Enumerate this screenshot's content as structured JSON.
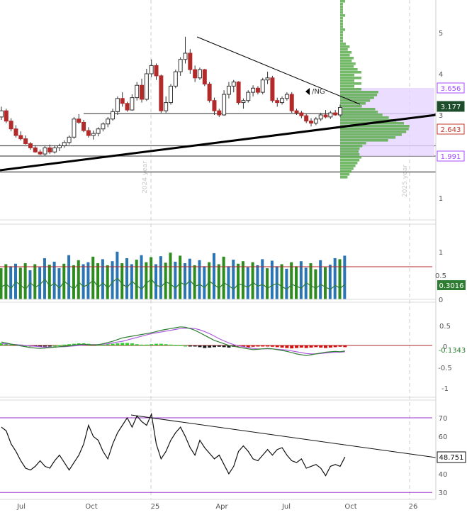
{
  "chart_data": [
    {
      "panel": "price",
      "type": "candlestick",
      "symbol_label": "/NG",
      "y_ticks": [
        "5",
        "4",
        "3",
        "2",
        "1"
      ],
      "ylim": [
        0.0,
        5.8
      ],
      "scale": "log",
      "year_labels": [
        "2024 year",
        "2025 year"
      ],
      "price_tags": [
        {
          "value": "3.656",
          "color": "#a64dff"
        },
        {
          "value": "3.177",
          "color": "#1d4d2b"
        },
        {
          "value": "2.643",
          "color": "#c0392b"
        },
        {
          "value": "1.991",
          "color": "#a64dff"
        }
      ],
      "horizontal_levels": [
        3.03,
        2.25,
        2.0,
        1.62
      ],
      "volume_profile": true,
      "candles": [
        {
          "o": 2.95,
          "h": 3.2,
          "l": 2.88,
          "c": 3.1
        },
        {
          "o": 3.1,
          "h": 3.15,
          "l": 2.8,
          "c": 2.85
        },
        {
          "o": 2.85,
          "h": 2.92,
          "l": 2.6,
          "c": 2.66
        },
        {
          "o": 2.66,
          "h": 2.75,
          "l": 2.45,
          "c": 2.5
        },
        {
          "o": 2.5,
          "h": 2.6,
          "l": 2.38,
          "c": 2.42
        },
        {
          "o": 2.42,
          "h": 2.5,
          "l": 2.28,
          "c": 2.3
        },
        {
          "o": 2.3,
          "h": 2.34,
          "l": 2.15,
          "c": 2.2
        },
        {
          "o": 2.2,
          "h": 2.26,
          "l": 2.08,
          "c": 2.1
        },
        {
          "o": 2.1,
          "h": 2.16,
          "l": 2.02,
          "c": 2.05
        },
        {
          "o": 2.05,
          "h": 2.25,
          "l": 2.0,
          "c": 2.2
        },
        {
          "o": 2.2,
          "h": 2.28,
          "l": 2.05,
          "c": 2.1
        },
        {
          "o": 2.1,
          "h": 2.25,
          "l": 2.06,
          "c": 2.2
        },
        {
          "o": 2.2,
          "h": 2.3,
          "l": 2.12,
          "c": 2.25
        },
        {
          "o": 2.25,
          "h": 2.38,
          "l": 2.2,
          "c": 2.33
        },
        {
          "o": 2.33,
          "h": 2.5,
          "l": 2.28,
          "c": 2.46
        },
        {
          "o": 2.46,
          "h": 2.95,
          "l": 2.42,
          "c": 2.9
        },
        {
          "o": 2.9,
          "h": 3.02,
          "l": 2.78,
          "c": 2.82
        },
        {
          "o": 2.82,
          "h": 2.88,
          "l": 2.58,
          "c": 2.62
        },
        {
          "o": 2.62,
          "h": 2.7,
          "l": 2.45,
          "c": 2.5
        },
        {
          "o": 2.5,
          "h": 2.62,
          "l": 2.4,
          "c": 2.55
        },
        {
          "o": 2.55,
          "h": 2.7,
          "l": 2.48,
          "c": 2.66
        },
        {
          "o": 2.66,
          "h": 2.82,
          "l": 2.6,
          "c": 2.78
        },
        {
          "o": 2.78,
          "h": 2.95,
          "l": 2.7,
          "c": 2.9
        },
        {
          "o": 2.9,
          "h": 3.15,
          "l": 2.86,
          "c": 3.08
        },
        {
          "o": 3.08,
          "h": 3.45,
          "l": 3.0,
          "c": 3.4
        },
        {
          "o": 3.4,
          "h": 3.55,
          "l": 3.2,
          "c": 3.28
        },
        {
          "o": 3.28,
          "h": 3.32,
          "l": 3.08,
          "c": 3.12
        },
        {
          "o": 3.12,
          "h": 3.5,
          "l": 3.1,
          "c": 3.42
        },
        {
          "o": 3.42,
          "h": 3.8,
          "l": 3.35,
          "c": 3.72
        },
        {
          "o": 3.72,
          "h": 3.88,
          "l": 3.3,
          "c": 3.38
        },
        {
          "o": 3.38,
          "h": 4.12,
          "l": 3.34,
          "c": 4.0
        },
        {
          "o": 4.0,
          "h": 4.35,
          "l": 3.92,
          "c": 4.2
        },
        {
          "o": 4.2,
          "h": 4.25,
          "l": 3.85,
          "c": 3.95
        },
        {
          "o": 3.95,
          "h": 3.98,
          "l": 3.05,
          "c": 3.1
        },
        {
          "o": 3.1,
          "h": 3.45,
          "l": 3.05,
          "c": 3.3
        },
        {
          "o": 3.3,
          "h": 3.75,
          "l": 3.25,
          "c": 3.7
        },
        {
          "o": 3.7,
          "h": 4.1,
          "l": 3.65,
          "c": 4.05
        },
        {
          "o": 4.05,
          "h": 4.4,
          "l": 3.95,
          "c": 4.35
        },
        {
          "o": 4.35,
          "h": 4.9,
          "l": 4.25,
          "c": 4.5
        },
        {
          "o": 4.5,
          "h": 4.6,
          "l": 4.0,
          "c": 4.1
        },
        {
          "o": 4.1,
          "h": 4.2,
          "l": 3.8,
          "c": 3.9
        },
        {
          "o": 3.9,
          "h": 4.15,
          "l": 3.85,
          "c": 4.1
        },
        {
          "o": 4.1,
          "h": 4.12,
          "l": 3.7,
          "c": 3.75
        },
        {
          "o": 3.75,
          "h": 3.8,
          "l": 3.3,
          "c": 3.35
        },
        {
          "o": 3.35,
          "h": 3.42,
          "l": 3.0,
          "c": 3.1
        },
        {
          "o": 3.1,
          "h": 3.15,
          "l": 2.95,
          "c": 3.0
        },
        {
          "o": 3.0,
          "h": 3.6,
          "l": 2.98,
          "c": 3.5
        },
        {
          "o": 3.5,
          "h": 3.8,
          "l": 3.4,
          "c": 3.7
        },
        {
          "o": 3.7,
          "h": 3.85,
          "l": 3.55,
          "c": 3.8
        },
        {
          "o": 3.8,
          "h": 3.82,
          "l": 3.25,
          "c": 3.3
        },
        {
          "o": 3.3,
          "h": 3.4,
          "l": 3.15,
          "c": 3.35
        },
        {
          "o": 3.35,
          "h": 3.6,
          "l": 3.3,
          "c": 3.55
        },
        {
          "o": 3.55,
          "h": 3.72,
          "l": 3.45,
          "c": 3.65
        },
        {
          "o": 3.65,
          "h": 3.7,
          "l": 3.5,
          "c": 3.55
        },
        {
          "o": 3.55,
          "h": 3.9,
          "l": 3.5,
          "c": 3.85
        },
        {
          "o": 3.85,
          "h": 4.05,
          "l": 3.75,
          "c": 3.9
        },
        {
          "o": 3.9,
          "h": 3.95,
          "l": 3.3,
          "c": 3.35
        },
        {
          "o": 3.35,
          "h": 3.42,
          "l": 3.2,
          "c": 3.3
        },
        {
          "o": 3.3,
          "h": 3.45,
          "l": 3.25,
          "c": 3.4
        },
        {
          "o": 3.4,
          "h": 3.55,
          "l": 3.35,
          "c": 3.5
        },
        {
          "o": 3.5,
          "h": 3.55,
          "l": 3.05,
          "c": 3.1
        },
        {
          "o": 3.1,
          "h": 3.15,
          "l": 3.0,
          "c": 3.05
        },
        {
          "o": 3.05,
          "h": 3.1,
          "l": 2.92,
          "c": 2.98
        },
        {
          "o": 2.98,
          "h": 3.02,
          "l": 2.8,
          "c": 2.85
        },
        {
          "o": 2.85,
          "h": 2.92,
          "l": 2.72,
          "c": 2.8
        },
        {
          "o": 2.8,
          "h": 2.95,
          "l": 2.75,
          "c": 2.9
        },
        {
          "o": 2.9,
          "h": 3.05,
          "l": 2.85,
          "c": 3.0
        },
        {
          "o": 3.0,
          "h": 3.12,
          "l": 2.92,
          "c": 2.95
        },
        {
          "o": 2.95,
          "h": 3.1,
          "l": 2.9,
          "c": 3.05
        },
        {
          "o": 3.05,
          "h": 3.12,
          "l": 2.98,
          "c": 3.0
        },
        {
          "o": 3.0,
          "h": 3.25,
          "l": 2.95,
          "c": 3.18
        }
      ]
    },
    {
      "panel": "volume",
      "type": "bar",
      "y_ticks": [
        "1",
        "0.5",
        "0"
      ],
      "ylim": [
        0,
        1.3
      ],
      "last_value_label": "0.3016",
      "reference_level": 0.65,
      "volume_values": [
        0.62,
        0.7,
        0.66,
        0.71,
        0.63,
        0.72,
        0.58,
        0.7,
        0.64,
        0.82,
        0.69,
        0.75,
        0.62,
        0.71,
        0.88,
        0.68,
        0.78,
        0.7,
        0.74,
        0.85,
        0.72,
        0.8,
        0.68,
        0.76,
        0.95,
        0.72,
        0.82,
        0.7,
        0.79,
        0.88,
        0.74,
        0.84,
        0.7,
        0.86,
        0.73,
        0.93,
        0.75,
        0.87,
        0.72,
        0.81,
        0.68,
        0.78,
        0.66,
        0.74,
        0.92,
        0.7,
        0.85,
        0.66,
        0.79,
        0.71,
        0.76,
        0.64,
        0.74,
        0.68,
        0.8,
        0.62,
        0.77,
        0.66,
        0.7,
        0.61,
        0.74,
        0.66,
        0.76,
        0.63,
        0.72,
        0.6,
        0.78,
        0.64,
        0.69,
        0.82,
        0.8,
        0.87
      ],
      "bar_colors": [
        "#2b75b5",
        "#2e8b1e"
      ],
      "moving_average": [
        0.25,
        0.3,
        0.22,
        0.35,
        0.28,
        0.2,
        0.33,
        0.24,
        0.3,
        0.4,
        0.26,
        0.32,
        0.22,
        0.36,
        0.28,
        0.2,
        0.34,
        0.25,
        0.3,
        0.38,
        0.24,
        0.33,
        0.22,
        0.35,
        0.42,
        0.3,
        0.24,
        0.36,
        0.27,
        0.2,
        0.33,
        0.4,
        0.28,
        0.25,
        0.35,
        0.3,
        0.22,
        0.34,
        0.28,
        0.38,
        0.26,
        0.3,
        0.23,
        0.36,
        0.29,
        0.22,
        0.33,
        0.27,
        0.2,
        0.31,
        0.28,
        0.24,
        0.34,
        0.26,
        0.3,
        0.22,
        0.28,
        0.32,
        0.25,
        0.2,
        0.3,
        0.26,
        0.22,
        0.33,
        0.27,
        0.22,
        0.3,
        0.24,
        0.2,
        0.28,
        0.22,
        0.3
      ]
    },
    {
      "panel": "macd",
      "type": "bar+line",
      "y_ticks": [
        "0.5",
        "0",
        "-0.5",
        "-1"
      ],
      "ylim": [
        -1.25,
        0.62
      ],
      "last_value_label": "-0.1343",
      "histogram": [
        0.06,
        0.05,
        0.04,
        0.03,
        0.02,
        0.0,
        -0.01,
        -0.02,
        -0.03,
        -0.02,
        -0.01,
        0.0,
        0.01,
        0.02,
        0.03,
        0.04,
        0.05,
        0.05,
        0.04,
        0.03,
        0.02,
        0.02,
        0.03,
        0.04,
        0.05,
        0.06,
        0.06,
        0.05,
        0.03,
        0.02,
        0.02,
        0.03,
        0.04,
        0.04,
        0.03,
        0.02,
        0.01,
        0.01,
        0.0,
        -0.01,
        -0.02,
        -0.04,
        -0.06,
        -0.05,
        -0.04,
        -0.03,
        -0.04,
        -0.05,
        -0.03,
        -0.02,
        -0.03,
        -0.04,
        -0.03,
        -0.02,
        -0.01,
        -0.02,
        -0.03,
        -0.04,
        -0.05,
        -0.06,
        -0.07,
        -0.06,
        -0.05,
        -0.06,
        -0.05,
        -0.04,
        -0.05,
        -0.06,
        -0.05,
        -0.04,
        -0.03,
        -0.04
      ],
      "macd_line": [
        0.08,
        0.06,
        0.03,
        0.01,
        -0.01,
        -0.03,
        -0.05,
        -0.06,
        -0.07,
        -0.06,
        -0.05,
        -0.04,
        -0.03,
        -0.02,
        -0.01,
        0.01,
        0.02,
        0.03,
        0.02,
        0.01,
        0.02,
        0.04,
        0.07,
        0.1,
        0.14,
        0.18,
        0.2,
        0.22,
        0.24,
        0.26,
        0.28,
        0.3,
        0.33,
        0.36,
        0.38,
        0.4,
        0.42,
        0.44,
        0.43,
        0.4,
        0.36,
        0.3,
        0.24,
        0.18,
        0.12,
        0.08,
        0.04,
        0.0,
        -0.02,
        -0.04,
        -0.06,
        -0.08,
        -0.1,
        -0.09,
        -0.08,
        -0.07,
        -0.08,
        -0.1,
        -0.12,
        -0.14,
        -0.17,
        -0.2,
        -0.22,
        -0.24,
        -0.22,
        -0.2,
        -0.18,
        -0.16,
        -0.15,
        -0.14,
        -0.15,
        -0.13
      ],
      "signal_line": [
        0.04,
        0.04,
        0.03,
        0.02,
        0.01,
        0.0,
        -0.01,
        -0.02,
        -0.03,
        -0.04,
        -0.04,
        -0.04,
        -0.03,
        -0.03,
        -0.02,
        -0.01,
        0.0,
        0.01,
        0.02,
        0.02,
        0.02,
        0.03,
        0.04,
        0.06,
        0.08,
        0.1,
        0.13,
        0.16,
        0.19,
        0.22,
        0.25,
        0.28,
        0.3,
        0.32,
        0.34,
        0.36,
        0.38,
        0.4,
        0.41,
        0.41,
        0.4,
        0.37,
        0.33,
        0.28,
        0.22,
        0.16,
        0.11,
        0.06,
        0.02,
        -0.01,
        -0.03,
        -0.05,
        -0.07,
        -0.08,
        -0.08,
        -0.08,
        -0.08,
        -0.09,
        -0.1,
        -0.11,
        -0.13,
        -0.15,
        -0.17,
        -0.19,
        -0.2,
        -0.2,
        -0.19,
        -0.18,
        -0.17,
        -0.16,
        -0.16,
        -0.15
      ]
    },
    {
      "panel": "oscillator",
      "type": "line",
      "y_ticks": [
        "70",
        "60",
        "50",
        "40",
        "30"
      ],
      "ylim": [
        27,
        75
      ],
      "last_value_label": "48.751",
      "bands": [
        70,
        30
      ],
      "values": [
        65,
        63,
        56,
        52,
        47,
        43,
        42,
        44,
        47,
        44,
        43,
        47,
        50,
        46,
        42,
        46,
        50,
        56,
        66,
        60,
        58,
        52,
        48,
        56,
        62,
        66,
        70,
        65,
        71,
        68,
        66,
        72,
        56,
        48,
        52,
        58,
        62,
        65,
        60,
        54,
        50,
        58,
        54,
        51,
        48,
        50,
        45,
        40,
        44,
        52,
        55,
        52,
        48,
        47,
        50,
        53,
        50,
        53,
        54,
        50,
        47,
        46,
        48,
        43,
        44,
        45,
        43,
        39,
        44,
        45,
        44,
        49
      ],
      "trendline_start": 71.5,
      "trendline_end": 48.7
    }
  ],
  "x_ticks": [
    "Jul",
    "Oct",
    "25",
    "Apr",
    "Jul",
    "Oct",
    "26"
  ]
}
